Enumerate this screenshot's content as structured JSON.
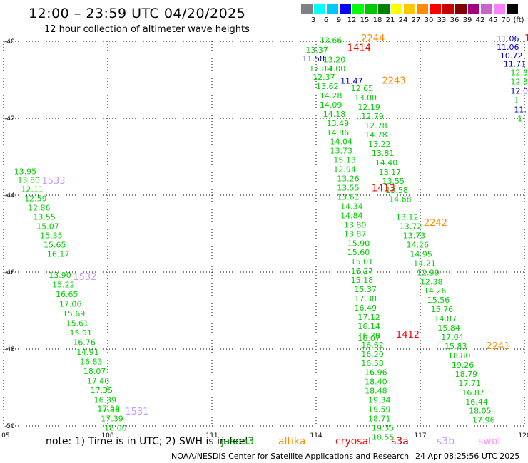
{
  "title": "12:00 – 23:59 UTC 04/20/2025",
  "subtitle": "12 hour collection of altimeter wave heights",
  "colorscale": {
    "labels": [
      "3",
      "6",
      "9",
      "12",
      "15",
      "18",
      "21",
      "24",
      "27",
      "30",
      "33",
      "36",
      "39",
      "42",
      "45",
      "70",
      "(ft)"
    ],
    "colors": [
      "#808080",
      "#00ffff",
      "#00c8ff",
      "#0000ff",
      "#00ff00",
      "#00c800",
      "#008000",
      "#ffff00",
      "#ffc800",
      "#ff8c00",
      "#ff0000",
      "#c80000",
      "#800000",
      "#a00080",
      "#c864c8",
      "#ff80ff",
      "#000000"
    ]
  },
  "note": "note:  1) Time is in UTC; 2) SWH is in feet",
  "legend": [
    {
      "label": "jason3",
      "color": "#00a000"
    },
    {
      "label": "altika",
      "color": "#ff8c00"
    },
    {
      "label": "cryosat",
      "color": "#ff0000"
    },
    {
      "label": "s3a",
      "color": "#c80000"
    },
    {
      "label": "s3b",
      "color": "#c0a0ff"
    },
    {
      "label": "swot",
      "color": "#ff90ff"
    }
  ],
  "credit": "NOAA/NESDIS Center for Satellite Applications and Research",
  "timestamp": "24 Apr 08:25:56 UTC 2025",
  "chart_data": {
    "type": "scatter",
    "title": "12:00 – 23:59 UTC 04/20/2025",
    "subtitle": "12 hour collection of altimeter wave heights",
    "xlim": [
      105,
      120
    ],
    "ylim": [
      -50,
      -40
    ],
    "xticks": [
      105,
      108,
      111,
      114,
      117,
      120
    ],
    "yticks": [
      -40,
      -42,
      -44,
      -46,
      -48,
      -50
    ],
    "grid": true,
    "units": "ft",
    "time_labels": [
      {
        "label": "1533",
        "lon": 106.1,
        "lat": -43.7,
        "color": "#c0a0ff"
      },
      {
        "label": "1532",
        "lon": 107.0,
        "lat": -46.2,
        "color": "#c0a0ff"
      },
      {
        "label": "1531",
        "lon": 108.5,
        "lat": -49.7,
        "color": "#c0a0ff"
      },
      {
        "label": "2244",
        "lon": 115.3,
        "lat": -40.0,
        "color": "#ff8c00"
      },
      {
        "label": "1414",
        "lon": 114.9,
        "lat": -40.25,
        "color": "#ff0000"
      },
      {
        "label": "2243",
        "lon": 115.9,
        "lat": -41.1,
        "color": "#ff8c00"
      },
      {
        "label": "1413",
        "lon": 115.6,
        "lat": -43.9,
        "color": "#ff0000"
      },
      {
        "label": "2242",
        "lon": 117.1,
        "lat": -44.8,
        "color": "#ff8c00"
      },
      {
        "label": "1412",
        "lon": 116.3,
        "lat": -47.7,
        "color": "#ff0000"
      },
      {
        "label": "2241",
        "lon": 118.9,
        "lat": -48.0,
        "color": "#ff8c00"
      },
      {
        "label": "1",
        "lon": 120.0,
        "lat": -40.0,
        "color": "#ff0000"
      }
    ],
    "series": [
      {
        "name": "1533",
        "color": "#00d000",
        "points": [
          {
            "lon": 105.3,
            "lat": -43.45,
            "v": "13.95"
          },
          {
            "lon": 105.4,
            "lat": -43.68,
            "v": "13.80"
          },
          {
            "lon": 105.5,
            "lat": -43.92,
            "v": "12.11"
          },
          {
            "lon": 105.6,
            "lat": -44.16,
            "v": "12.59"
          },
          {
            "lon": 105.7,
            "lat": -44.4,
            "v": "12.86"
          },
          {
            "lon": 105.85,
            "lat": -44.64,
            "v": "13.55"
          },
          {
            "lon": 105.95,
            "lat": -44.88,
            "v": "15.07"
          },
          {
            "lon": 106.05,
            "lat": -45.12,
            "v": "15.35"
          },
          {
            "lon": 106.15,
            "lat": -45.36,
            "v": "15.65"
          },
          {
            "lon": 106.25,
            "lat": -45.6,
            "v": "16.17"
          }
        ]
      },
      {
        "name": "1532",
        "color": "#00d000",
        "points": [
          {
            "lon": 106.3,
            "lat": -46.15,
            "v": "13.90"
          },
          {
            "lon": 106.4,
            "lat": -46.4,
            "v": "15.22"
          },
          {
            "lon": 106.5,
            "lat": -46.65,
            "v": "16.65"
          },
          {
            "lon": 106.6,
            "lat": -46.9,
            "v": "17.06"
          },
          {
            "lon": 106.7,
            "lat": -47.15,
            "v": "15.69"
          },
          {
            "lon": 106.8,
            "lat": -47.4,
            "v": "15.61"
          },
          {
            "lon": 106.9,
            "lat": -47.65,
            "v": "15.91"
          },
          {
            "lon": 107.0,
            "lat": -47.9,
            "v": "16.76"
          },
          {
            "lon": 107.1,
            "lat": -48.15,
            "v": "14.91"
          },
          {
            "lon": 107.2,
            "lat": -48.4,
            "v": "16.83"
          },
          {
            "lon": 107.3,
            "lat": -48.65,
            "v": "18.07"
          },
          {
            "lon": 107.4,
            "lat": -48.9,
            "v": "17.40"
          },
          {
            "lon": 107.5,
            "lat": -49.15,
            "v": "17.35"
          },
          {
            "lon": 107.6,
            "lat": -49.4,
            "v": "16.39"
          },
          {
            "lon": 107.7,
            "lat": -49.62,
            "v": "17.58"
          },
          {
            "lon": 107.7,
            "lat": -49.65,
            "v": "17.88"
          },
          {
            "lon": 107.8,
            "lat": -49.88,
            "v": "17.39"
          },
          {
            "lon": 107.9,
            "lat": -50.12,
            "v": "18.00"
          }
        ]
      },
      {
        "name": "1414",
        "color": "#00d000",
        "points": [
          {
            "lon": 113.7,
            "lat": -40.3,
            "v": "13.37"
          },
          {
            "lon": 114.2,
            "lat": -40.55,
            "v": "13.20"
          },
          {
            "lon": 114.2,
            "lat": -40.78,
            "v": "14.00"
          },
          {
            "lon": 113.8,
            "lat": -40.78,
            "v": "12.88"
          },
          {
            "lon": 113.9,
            "lat": -41.0,
            "v": "12.37"
          },
          {
            "lon": 114.0,
            "lat": -41.24,
            "v": "13.62"
          },
          {
            "lon": 114.1,
            "lat": -41.48,
            "v": "14.28"
          },
          {
            "lon": 114.1,
            "lat": -41.72,
            "v": "14.09"
          },
          {
            "lon": 114.2,
            "lat": -41.96,
            "v": "14.18"
          },
          {
            "lon": 114.3,
            "lat": -42.2,
            "v": "13.49"
          },
          {
            "lon": 114.3,
            "lat": -42.44,
            "v": "14.86"
          },
          {
            "lon": 114.4,
            "lat": -42.68,
            "v": "14.04"
          },
          {
            "lon": 114.4,
            "lat": -42.92,
            "v": "13.73"
          },
          {
            "lon": 114.5,
            "lat": -43.16,
            "v": "15.13"
          },
          {
            "lon": 114.5,
            "lat": -43.4,
            "v": "12.94"
          },
          {
            "lon": 114.6,
            "lat": -43.64,
            "v": "13.26"
          },
          {
            "lon": 114.6,
            "lat": -43.88,
            "v": "13.55"
          },
          {
            "lon": 114.6,
            "lat": -44.12,
            "v": "13.61"
          },
          {
            "lon": 114.7,
            "lat": -44.36,
            "v": "14.34"
          },
          {
            "lon": 114.7,
            "lat": -44.6,
            "v": "14.84"
          },
          {
            "lon": 114.8,
            "lat": -44.84,
            "v": "13.80"
          },
          {
            "lon": 114.8,
            "lat": -45.08,
            "v": "13.87"
          },
          {
            "lon": 114.9,
            "lat": -45.32,
            "v": "15.90"
          },
          {
            "lon": 114.9,
            "lat": -45.56,
            "v": "15.60"
          },
          {
            "lon": 115.0,
            "lat": -45.8,
            "v": "15.01"
          },
          {
            "lon": 115.0,
            "lat": -46.04,
            "v": "16.27"
          },
          {
            "lon": 115.0,
            "lat": -46.28,
            "v": "15.18"
          },
          {
            "lon": 115.1,
            "lat": -46.52,
            "v": "15.37"
          },
          {
            "lon": 115.1,
            "lat": -46.76,
            "v": "17.38"
          },
          {
            "lon": 115.1,
            "lat": -47.0,
            "v": "16.49"
          },
          {
            "lon": 115.2,
            "lat": -47.24,
            "v": "17.12"
          },
          {
            "lon": 115.2,
            "lat": -47.48,
            "v": "16.14"
          },
          {
            "lon": 115.2,
            "lat": -47.72,
            "v": "16.28"
          },
          {
            "lon": 115.2,
            "lat": -47.8,
            "v": "16.07"
          },
          {
            "lon": 115.3,
            "lat": -47.96,
            "v": "16.62"
          },
          {
            "lon": 115.3,
            "lat": -48.2,
            "v": "16.20"
          },
          {
            "lon": 115.3,
            "lat": -48.44,
            "v": "16.58"
          },
          {
            "lon": 115.4,
            "lat": -48.68,
            "v": "16.96"
          },
          {
            "lon": 115.4,
            "lat": -48.92,
            "v": "18.40"
          },
          {
            "lon": 115.4,
            "lat": -49.16,
            "v": "18.48"
          },
          {
            "lon": 115.5,
            "lat": -49.4,
            "v": "19.34"
          },
          {
            "lon": 115.5,
            "lat": -49.64,
            "v": "19.59"
          },
          {
            "lon": 115.5,
            "lat": -49.88,
            "v": "18.71"
          },
          {
            "lon": 115.6,
            "lat": -50.12,
            "v": "19.35"
          },
          {
            "lon": 115.6,
            "lat": -50.36,
            "v": "18.55"
          }
        ]
      },
      {
        "name": "2244",
        "color": "#00d000",
        "points": [
          {
            "lon": 114.1,
            "lat": -40.05,
            "v": "13.66"
          },
          {
            "lon": 115.0,
            "lat": -41.3,
            "v": "12.65"
          },
          {
            "lon": 115.1,
            "lat": -41.54,
            "v": "13.00"
          },
          {
            "lon": 115.2,
            "lat": -41.78,
            "v": "12.19"
          },
          {
            "lon": 115.3,
            "lat": -42.02,
            "v": "12.79"
          },
          {
            "lon": 115.4,
            "lat": -42.26,
            "v": "12.78"
          },
          {
            "lon": 115.4,
            "lat": -42.5,
            "v": "14.78"
          },
          {
            "lon": 115.5,
            "lat": -42.74,
            "v": "13.22"
          },
          {
            "lon": 115.6,
            "lat": -42.98,
            "v": "13.81"
          },
          {
            "lon": 115.7,
            "lat": -43.22,
            "v": "14.40"
          },
          {
            "lon": 115.8,
            "lat": -43.46,
            "v": "13.17"
          },
          {
            "lon": 115.9,
            "lat": -43.7,
            "v": "13.55"
          },
          {
            "lon": 116.0,
            "lat": -43.94,
            "v": "13.58"
          },
          {
            "lon": 116.1,
            "lat": -44.18,
            "v": "14.68"
          }
        ]
      },
      {
        "name": "2242",
        "color": "#00d000",
        "points": [
          {
            "lon": 116.3,
            "lat": -44.64,
            "v": "13.12"
          },
          {
            "lon": 116.4,
            "lat": -44.88,
            "v": "13.72"
          },
          {
            "lon": 116.5,
            "lat": -45.12,
            "v": "13.73"
          },
          {
            "lon": 116.6,
            "lat": -45.36,
            "v": "14.26"
          },
          {
            "lon": 116.7,
            "lat": -45.6,
            "v": "14.95"
          },
          {
            "lon": 116.8,
            "lat": -45.84,
            "v": "14.21"
          },
          {
            "lon": 116.9,
            "lat": -46.08,
            "v": "12.99"
          },
          {
            "lon": 117.0,
            "lat": -46.32,
            "v": "12.38"
          },
          {
            "lon": 117.1,
            "lat": -46.56,
            "v": "14.26"
          },
          {
            "lon": 117.2,
            "lat": -46.8,
            "v": "15.56"
          },
          {
            "lon": 117.3,
            "lat": -47.04,
            "v": "15.76"
          },
          {
            "lon": 117.4,
            "lat": -47.28,
            "v": "14.87"
          },
          {
            "lon": 117.5,
            "lat": -47.52,
            "v": "15.84"
          },
          {
            "lon": 117.6,
            "lat": -47.76,
            "v": "17.04"
          },
          {
            "lon": 117.7,
            "lat": -48.0,
            "v": "15.83"
          },
          {
            "lon": 117.8,
            "lat": -48.24,
            "v": "18.80"
          },
          {
            "lon": 117.9,
            "lat": -48.48,
            "v": "19.26"
          },
          {
            "lon": 118.0,
            "lat": -48.72,
            "v": "18.79"
          },
          {
            "lon": 118.1,
            "lat": -48.96,
            "v": "17.71"
          },
          {
            "lon": 118.2,
            "lat": -49.2,
            "v": "16.87"
          },
          {
            "lon": 118.3,
            "lat": -49.44,
            "v": "16.44"
          },
          {
            "lon": 118.4,
            "lat": -49.68,
            "v": "18.05"
          },
          {
            "lon": 118.5,
            "lat": -49.92,
            "v": "17.96"
          }
        ]
      },
      {
        "name": "blue",
        "color": "#0000c8",
        "points": [
          {
            "lon": 113.6,
            "lat": -40.52,
            "v": "11.58"
          },
          {
            "lon": 114.7,
            "lat": -41.1,
            "v": "11.47"
          },
          {
            "lon": 119.2,
            "lat": -40.0,
            "v": "11.06"
          },
          {
            "lon": 119.2,
            "lat": -40.22,
            "v": "11.06"
          },
          {
            "lon": 119.3,
            "lat": -40.44,
            "v": "10.72"
          },
          {
            "lon": 119.4,
            "lat": -40.66,
            "v": "11.71"
          },
          {
            "lon": 119.6,
            "lat": -41.36,
            "v": "12.0"
          },
          {
            "lon": 119.7,
            "lat": -41.84,
            "v": "11."
          }
        ]
      },
      {
        "name": "right-green",
        "color": "#00d000",
        "points": [
          {
            "lon": 119.6,
            "lat": -40.88,
            "v": "12.3"
          },
          {
            "lon": 119.6,
            "lat": -41.12,
            "v": "12.3"
          },
          {
            "lon": 119.7,
            "lat": -41.6,
            "v": "1"
          },
          {
            "lon": 119.8,
            "lat": -42.08,
            "v": "1"
          }
        ]
      }
    ]
  }
}
